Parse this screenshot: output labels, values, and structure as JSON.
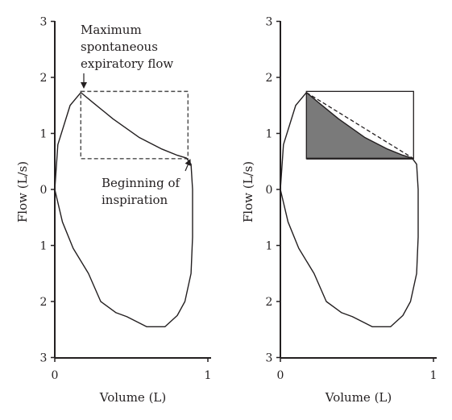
{
  "chart_data": [
    {
      "type": "line",
      "panel": "left",
      "xlabel": "Volume (L)",
      "ylabel": "Flow (L/s)",
      "xlim": [
        0,
        1
      ],
      "ylim": [
        -3,
        3
      ],
      "x_ticks": [
        "0",
        "1"
      ],
      "y_tick_labels": [
        "3",
        "2",
        "1",
        "0",
        "1",
        "2",
        "3"
      ],
      "y_tick_values": [
        3,
        2,
        1,
        0,
        -1,
        -2,
        -3
      ],
      "grid": false,
      "loop": [
        {
          "x": 0.0,
          "y": 0.0
        },
        {
          "x": 0.02,
          "y": 0.8
        },
        {
          "x": 0.1,
          "y": 1.5
        },
        {
          "x": 0.17,
          "y": 1.73
        },
        {
          "x": 0.25,
          "y": 1.55
        },
        {
          "x": 0.38,
          "y": 1.26
        },
        {
          "x": 0.55,
          "y": 0.93
        },
        {
          "x": 0.7,
          "y": 0.72
        },
        {
          "x": 0.8,
          "y": 0.61
        },
        {
          "x": 0.86,
          "y": 0.56
        },
        {
          "x": 0.89,
          "y": 0.45
        },
        {
          "x": 0.9,
          "y": 0.0
        },
        {
          "x": 0.9,
          "y": -0.85
        },
        {
          "x": 0.89,
          "y": -1.5
        },
        {
          "x": 0.85,
          "y": -2.0
        },
        {
          "x": 0.8,
          "y": -2.25
        },
        {
          "x": 0.72,
          "y": -2.45
        },
        {
          "x": 0.6,
          "y": -2.45
        },
        {
          "x": 0.47,
          "y": -2.27
        },
        {
          "x": 0.4,
          "y": -2.2
        },
        {
          "x": 0.3,
          "y": -2.0
        },
        {
          "x": 0.22,
          "y": -1.5
        },
        {
          "x": 0.12,
          "y": -1.05
        },
        {
          "x": 0.05,
          "y": -0.58
        },
        {
          "x": 0.0,
          "y": 0.0
        }
      ],
      "dashed_box": {
        "x0": 0.17,
        "x1": 0.87,
        "y0": 0.55,
        "y1": 1.75
      },
      "annotations": [
        {
          "text": [
            "Maximum",
            "spontaneous",
            "expiratory flow"
          ],
          "points_to": {
            "x": 0.17,
            "y": 1.73
          }
        },
        {
          "text": [
            "Beginning of",
            "inspiration"
          ],
          "points_to": {
            "x": 0.87,
            "y": 0.55
          }
        }
      ]
    },
    {
      "type": "line",
      "panel": "right",
      "xlabel": "Volume (L)",
      "ylabel": "Flow (L/s)",
      "xlim": [
        0,
        1
      ],
      "ylim": [
        -3,
        3
      ],
      "x_ticks": [
        "0",
        "1"
      ],
      "y_tick_labels": [
        "3",
        "2",
        "1",
        "0",
        "1",
        "2",
        "3"
      ],
      "y_tick_values": [
        3,
        2,
        1,
        0,
        -1,
        -2,
        -3
      ],
      "grid": false,
      "loop": [
        {
          "x": 0.0,
          "y": 0.0
        },
        {
          "x": 0.02,
          "y": 0.8
        },
        {
          "x": 0.1,
          "y": 1.5
        },
        {
          "x": 0.17,
          "y": 1.73
        },
        {
          "x": 0.25,
          "y": 1.55
        },
        {
          "x": 0.38,
          "y": 1.26
        },
        {
          "x": 0.55,
          "y": 0.93
        },
        {
          "x": 0.7,
          "y": 0.72
        },
        {
          "x": 0.8,
          "y": 0.61
        },
        {
          "x": 0.86,
          "y": 0.56
        },
        {
          "x": 0.89,
          "y": 0.45
        },
        {
          "x": 0.9,
          "y": 0.0
        },
        {
          "x": 0.9,
          "y": -0.85
        },
        {
          "x": 0.89,
          "y": -1.5
        },
        {
          "x": 0.85,
          "y": -2.0
        },
        {
          "x": 0.8,
          "y": -2.25
        },
        {
          "x": 0.72,
          "y": -2.45
        },
        {
          "x": 0.6,
          "y": -2.45
        },
        {
          "x": 0.47,
          "y": -2.27
        },
        {
          "x": 0.4,
          "y": -2.2
        },
        {
          "x": 0.3,
          "y": -2.0
        },
        {
          "x": 0.22,
          "y": -1.5
        },
        {
          "x": 0.12,
          "y": -1.05
        },
        {
          "x": 0.05,
          "y": -0.58
        },
        {
          "x": 0.0,
          "y": 0.0
        }
      ],
      "solid_box": {
        "x0": 0.17,
        "x1": 0.87,
        "y0": 0.55,
        "y1": 1.75
      },
      "shaded_area_color": "#7a7a7a",
      "diagonal": {
        "from": {
          "x": 0.17,
          "y": 1.73
        },
        "to": {
          "x": 0.87,
          "y": 0.55
        }
      }
    }
  ]
}
